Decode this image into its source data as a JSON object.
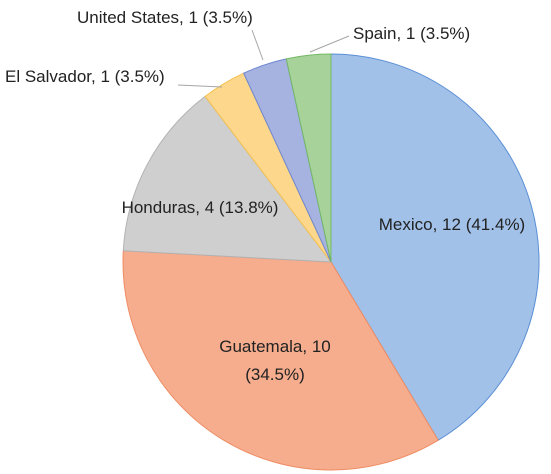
{
  "chart_data": {
    "type": "pie",
    "title": "",
    "start_angle_deg": 0,
    "direction": "clockwise",
    "legend": "none",
    "slices": [
      {
        "name": "Mexico",
        "value": 12,
        "percent": "41.4%",
        "label": "Mexico, 12 (41.4%)",
        "label_lines": [
          "Mexico, 12 (41.4%)"
        ],
        "color": "#a2c1e9",
        "edge": "#5b8fd4"
      },
      {
        "name": "Guatemala",
        "value": 10,
        "percent": "34.5%",
        "label": "Guatemala, 10 (34.5%)",
        "label_lines": [
          "Guatemala, 10",
          "(34.5%)"
        ],
        "color": "#f6ad8e",
        "edge": "#ee8c63"
      },
      {
        "name": "Honduras",
        "value": 4,
        "percent": "13.8%",
        "label": "Honduras, 4 (13.8%)",
        "label_lines": [
          "Honduras, 4 (13.8%)"
        ],
        "color": "#cfcfcf",
        "edge": "#b2b2b2"
      },
      {
        "name": "El Salvador",
        "value": 1,
        "percent": "3.5%",
        "label": "El Salvador, 1 (3.5%)",
        "label_lines": [
          "El Salvador, 1 (3.5%)"
        ],
        "color": "#fdd88c",
        "edge": "#f4c04f"
      },
      {
        "name": "United States",
        "value": 1,
        "percent": "3.5%",
        "label": "United States, 1 (3.5%)",
        "label_lines": [
          "United States, 1 (3.5%)"
        ],
        "color": "#a6b3e0",
        "edge": "#6f86cf"
      },
      {
        "name": "Spain",
        "value": 1,
        "percent": "3.5%",
        "label": "Spain, 1 (3.5%)",
        "label_lines": [
          "Spain, 1 (3.5%)"
        ],
        "color": "#a7d39b",
        "edge": "#73b865"
      }
    ]
  }
}
